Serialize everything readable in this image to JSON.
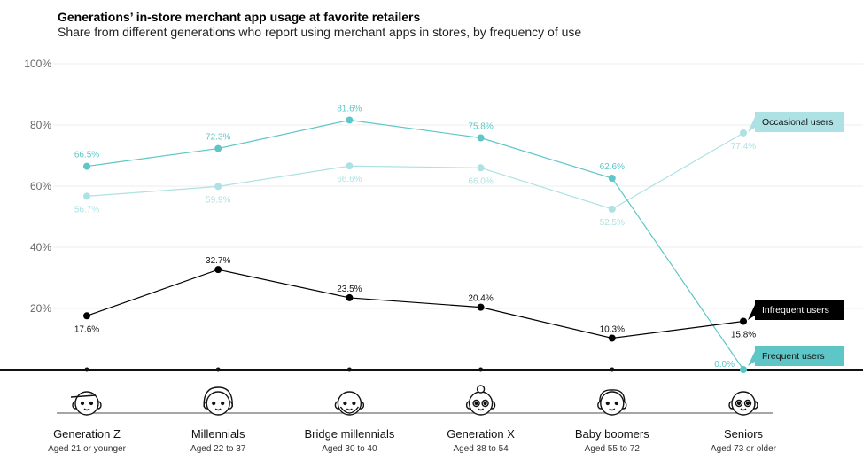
{
  "header": {
    "title": "Generations’ in-store merchant app usage at favorite retailers",
    "subtitle": "Share from different generations who report using merchant apps in stores, by frequency of use"
  },
  "chart_data": {
    "type": "line",
    "title": "Generations’ in-store merchant app usage at favorite retailers",
    "subtitle": "Share from different generations who report using merchant apps in stores, by frequency of use",
    "categories": [
      "Generation Z",
      "Millennials",
      "Bridge millennials",
      "Generation X",
      "Baby boomers",
      "Seniors"
    ],
    "category_sublabels": [
      "Aged 21 or younger",
      "Aged 22 to 37",
      "Aged 30 to 40",
      "Aged 38 to 54",
      "Aged 55 to 72",
      "Aged 73 or older"
    ],
    "yticks": [
      "20%",
      "40%",
      "60%",
      "80%",
      "100%"
    ],
    "ytick_values": [
      20,
      40,
      60,
      80,
      100
    ],
    "ylim": [
      0,
      100
    ],
    "grid": true,
    "legend_placement": "right, tags at line ends",
    "series": [
      {
        "name": "Frequent users",
        "color": "#5ec6c7",
        "values": [
          66.5,
          72.3,
          81.6,
          75.8,
          62.6,
          0.0
        ],
        "labels": [
          "66.5%",
          "72.3%",
          "81.6%",
          "75.8%",
          "62.6%",
          "0.0%"
        ]
      },
      {
        "name": "Occasional users",
        "color": "#aee1e3",
        "values": [
          56.7,
          59.9,
          66.6,
          66.0,
          52.5,
          77.4
        ],
        "labels": [
          "56.7%",
          "59.9%",
          "66.6%",
          "66.0%",
          "52.5%",
          "77.4%"
        ]
      },
      {
        "name": "Infrequent users",
        "color": "#000000",
        "values": [
          17.6,
          32.7,
          23.5,
          20.4,
          10.3,
          15.8
        ],
        "labels": [
          "17.6%",
          "32.7%",
          "23.5%",
          "20.4%",
          "10.3%",
          "15.8%"
        ]
      }
    ],
    "icons": [
      "gen-z-face-icon",
      "millennial-face-icon",
      "bridge-millennial-face-icon",
      "gen-x-face-icon",
      "baby-boomer-face-icon",
      "senior-face-icon"
    ]
  }
}
